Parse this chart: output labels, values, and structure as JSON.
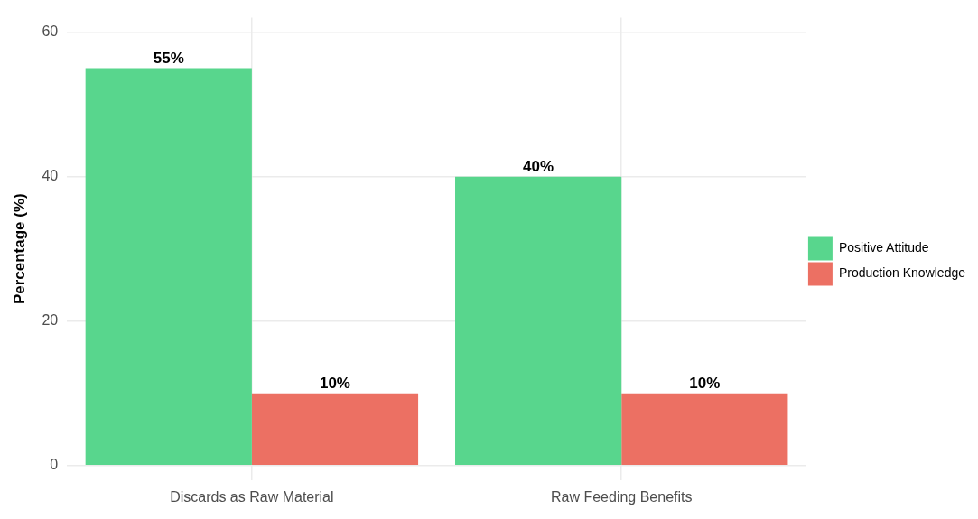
{
  "chart_data": {
    "type": "bar",
    "ylabel": "Percentage (%)",
    "categories": [
      "Discards as Raw Material",
      "Raw Feeding Benefits"
    ],
    "series": [
      {
        "name": "Positive Attitude",
        "color": "#58d68d",
        "values": [
          55,
          40
        ],
        "value_labels": [
          "55%",
          "40%"
        ]
      },
      {
        "name": "Production Knowledge",
        "color": "#ec7063",
        "values": [
          10,
          10
        ],
        "value_labels": [
          "10%",
          "10%"
        ]
      }
    ],
    "ylim": [
      -2,
      62
    ],
    "yticks": [
      0,
      20,
      40,
      60
    ],
    "grid": true,
    "legend": "right"
  }
}
